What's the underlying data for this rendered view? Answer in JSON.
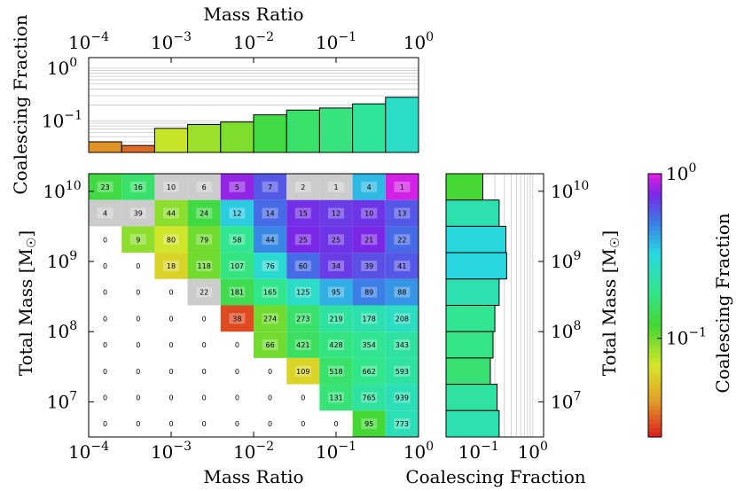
{
  "chart_data": [
    {
      "type": "heatmap",
      "name": "Total mass vs mass ratio grid",
      "xlabel": "Mass Ratio",
      "ylabel": "Total Mass [M_sun]",
      "x_log_range": [
        -4,
        0
      ],
      "y_log_range": [
        6.5,
        10.25
      ],
      "x_edges_log": [
        -4,
        -3.6,
        -3.2,
        -2.8,
        -2.4,
        -2.0,
        -1.6,
        -1.2,
        -0.8,
        -0.4,
        0
      ],
      "y_edges_log": [
        10.25,
        9.875,
        9.5,
        9.125,
        8.75,
        8.375,
        8.0,
        7.625,
        7.25,
        6.875,
        6.5
      ],
      "x_ticks": [
        "10^-4",
        "10^-3",
        "10^-2",
        "10^-1",
        "10^0"
      ],
      "y_ticks": [
        "10^10",
        "10^9",
        "10^8",
        "10^7"
      ],
      "counts": [
        [
          23,
          16,
          10,
          6,
          5,
          7,
          2,
          1,
          4,
          1
        ],
        [
          4,
          39,
          44,
          24,
          12,
          14,
          15,
          12,
          10,
          13
        ],
        [
          0,
          9,
          80,
          79,
          58,
          44,
          25,
          25,
          21,
          22
        ],
        [
          0,
          0,
          18,
          118,
          107,
          76,
          60,
          34,
          39,
          41
        ],
        [
          0,
          0,
          0,
          22,
          181,
          165,
          125,
          95,
          89,
          88
        ],
        [
          0,
          0,
          0,
          0,
          38,
          274,
          273,
          219,
          178,
          208
        ],
        [
          0,
          0,
          0,
          0,
          0,
          66,
          421,
          428,
          354,
          343
        ],
        [
          0,
          0,
          0,
          0,
          0,
          0,
          109,
          518,
          662,
          593
        ],
        [
          0,
          0,
          0,
          0,
          0,
          0,
          0,
          131,
          765,
          939
        ],
        [
          0,
          0,
          0,
          0,
          0,
          0,
          0,
          0,
          95,
          773
        ]
      ],
      "coalescing_fraction": [
        [
          0.13,
          0.16,
          null,
          null,
          0.8,
          0.6,
          null,
          null,
          0.38,
          0.95
        ],
        [
          null,
          null,
          0.09,
          0.13,
          0.35,
          0.55,
          0.72,
          0.68,
          0.7,
          0.6
        ],
        [
          null,
          0.09,
          0.07,
          0.1,
          0.2,
          0.48,
          0.75,
          0.7,
          0.75,
          0.55
        ],
        [
          null,
          null,
          0.06,
          0.1,
          0.18,
          0.3,
          0.55,
          0.68,
          0.62,
          0.6
        ],
        [
          null,
          null,
          null,
          null,
          0.14,
          0.19,
          0.28,
          0.4,
          0.5,
          0.45
        ],
        [
          null,
          null,
          null,
          null,
          0.03,
          0.1,
          0.16,
          0.22,
          0.24,
          0.27
        ],
        [
          null,
          null,
          null,
          null,
          null,
          0.1,
          0.15,
          0.18,
          0.2,
          0.22
        ],
        [
          null,
          null,
          null,
          null,
          null,
          null,
          0.06,
          0.16,
          0.19,
          0.22
        ],
        [
          null,
          null,
          null,
          null,
          null,
          null,
          null,
          0.17,
          0.22,
          0.25
        ],
        [
          null,
          null,
          null,
          null,
          null,
          null,
          null,
          null,
          0.12,
          0.25
        ]
      ],
      "grey_cells_note": "cells with null fraction and nonzero count are drawn grey"
    },
    {
      "type": "bar",
      "name": "Marginal over mass ratio (top panel)",
      "xlabel": "Mass Ratio",
      "ylabel": "Coalescing Fraction",
      "x_log_range": [
        -4,
        0
      ],
      "y_log_range": [
        -1.6,
        0.2
      ],
      "values": [
        0.04,
        0.034,
        0.072,
        0.085,
        0.095,
        0.13,
        0.16,
        0.175,
        0.21,
        0.28
      ],
      "y_ticks": [
        "10^0",
        "10^-1"
      ]
    },
    {
      "type": "bar",
      "name": "Marginal over total mass (right panel)",
      "xlabel": "Coalescing Fraction",
      "ylabel": "Total Mass [M_sun]",
      "x_log_range": [
        -1.6,
        0.2
      ],
      "values": [
        0.12,
        0.24,
        0.32,
        0.33,
        0.24,
        0.2,
        0.185,
        0.165,
        0.22,
        0.24
      ],
      "x_ticks": [
        "10^-1",
        "10^0"
      ]
    },
    {
      "type": "colorbar",
      "label": "Coalescing Fraction",
      "log_range": [
        -1.6,
        0
      ],
      "ticks": [
        "10^0",
        "10^-1"
      ]
    }
  ],
  "labels": {
    "main_xlabel": "Mass Ratio",
    "top_xlabel": "Mass Ratio",
    "main_ylabel": "Total Mass [M",
    "right_ylabel": "Total Mass [M",
    "top_ylabel": "Coalescing Fraction",
    "right_xlabel": "Coalescing Fraction",
    "colorbar_label": "Coalescing Fraction"
  },
  "colors": {
    "grey_cell": "#cccccc",
    "edge": "#000000"
  }
}
